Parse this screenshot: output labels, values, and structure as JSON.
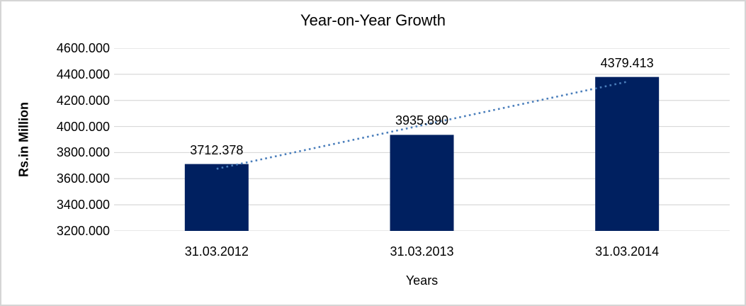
{
  "chart_data": {
    "type": "bar",
    "title": "Year-on-Year Growth",
    "xlabel": "Years",
    "ylabel": "Rs.in Million",
    "categories": [
      "31.03.2012",
      "31.03.2013",
      "31.03.2014"
    ],
    "values": [
      3712.378,
      3935.89,
      4379.413
    ],
    "value_labels": [
      "3712.378",
      "3935.890",
      "4379.413"
    ],
    "ylim": [
      3200,
      4600
    ],
    "ytick_step": 200,
    "ytick_labels": [
      "3200.000",
      "3400.000",
      "3600.000",
      "3800.000",
      "4000.000",
      "4200.000",
      "4400.000",
      "4600.000"
    ],
    "grid": "horizontal",
    "legend": "none",
    "trendline": {
      "type": "linear",
      "style": "dotted",
      "endpoint_values": [
        3675.71,
        4342.74
      ]
    },
    "colors": {
      "bar": "#002060",
      "trendline": "#4A7EBB",
      "gridline": "#D9D9D9",
      "chart_border": "#D5D5D5",
      "text": "#000000"
    }
  }
}
